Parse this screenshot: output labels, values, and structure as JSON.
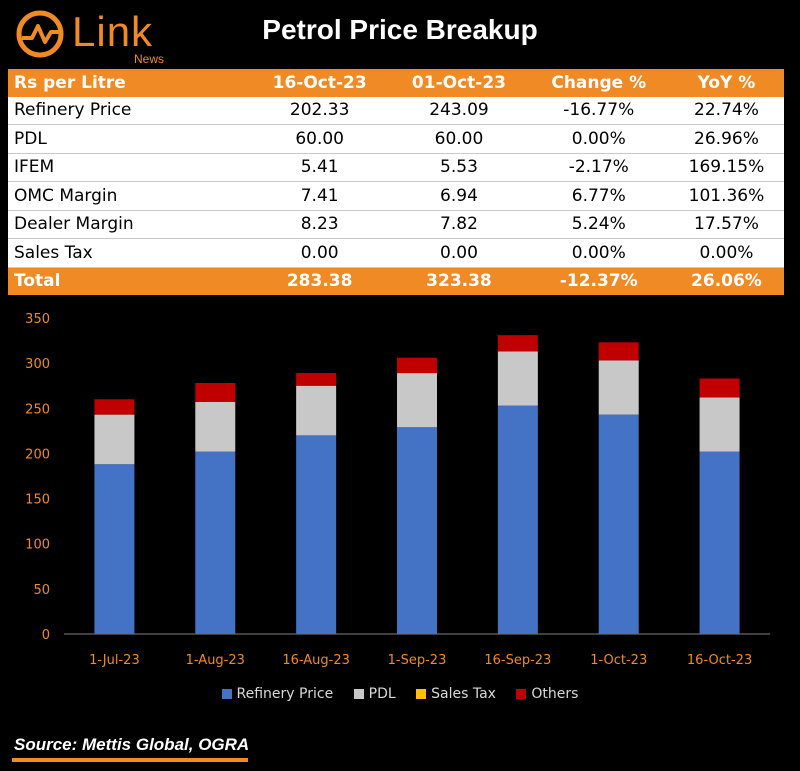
{
  "header": {
    "logo_text": "Link",
    "logo_sub": "News",
    "title": "Petrol Price Breakup"
  },
  "table": {
    "columns": [
      "Rs per Litre",
      "16-Oct-23",
      "01-Oct-23",
      "Change %",
      "YoY %"
    ],
    "rows": [
      [
        "Refinery Price",
        "202.33",
        "243.09",
        "-16.77%",
        "22.74%"
      ],
      [
        "PDL",
        "60.00",
        "60.00",
        "0.00%",
        "26.96%"
      ],
      [
        "IFEM",
        "5.41",
        "5.53",
        "-2.17%",
        "169.15%"
      ],
      [
        "OMC Margin",
        "7.41",
        "6.94",
        "6.77%",
        "101.36%"
      ],
      [
        "Dealer Margin",
        "8.23",
        "7.82",
        "5.24%",
        "17.57%"
      ],
      [
        "Sales Tax",
        "0.00",
        "0.00",
        "0.00%",
        "0.00%"
      ]
    ],
    "total": [
      "Total",
      "283.38",
      "323.38",
      "-12.37%",
      "26.06%"
    ]
  },
  "chart_data": {
    "type": "bar",
    "stacked": true,
    "categories": [
      "1-Jul-23",
      "1-Aug-23",
      "16-Aug-23",
      "1-Sep-23",
      "16-Sep-23",
      "1-Oct-23",
      "16-Oct-23"
    ],
    "series": [
      {
        "name": "Refinery Price",
        "color": "#4472c4",
        "values": [
          188,
          202,
          220,
          229,
          253,
          243,
          202
        ]
      },
      {
        "name": "PDL",
        "color": "#c8c8c8",
        "values": [
          55,
          55,
          55,
          60,
          60,
          60,
          60
        ]
      },
      {
        "name": "Sales Tax",
        "color": "#ffc000",
        "values": [
          0,
          0,
          0,
          0,
          0,
          0,
          0
        ]
      },
      {
        "name": "Others",
        "color": "#c00000",
        "values": [
          17,
          21,
          14,
          17,
          18,
          20,
          21
        ]
      }
    ],
    "ylim": [
      0,
      350
    ],
    "yticks": [
      0,
      50,
      100,
      150,
      200,
      250,
      300,
      350
    ],
    "grid": false,
    "legend": "bottom"
  },
  "source": "Source: Mettis Global, OGRA",
  "colors": {
    "accent": "#f08a24",
    "background": "#000000"
  }
}
